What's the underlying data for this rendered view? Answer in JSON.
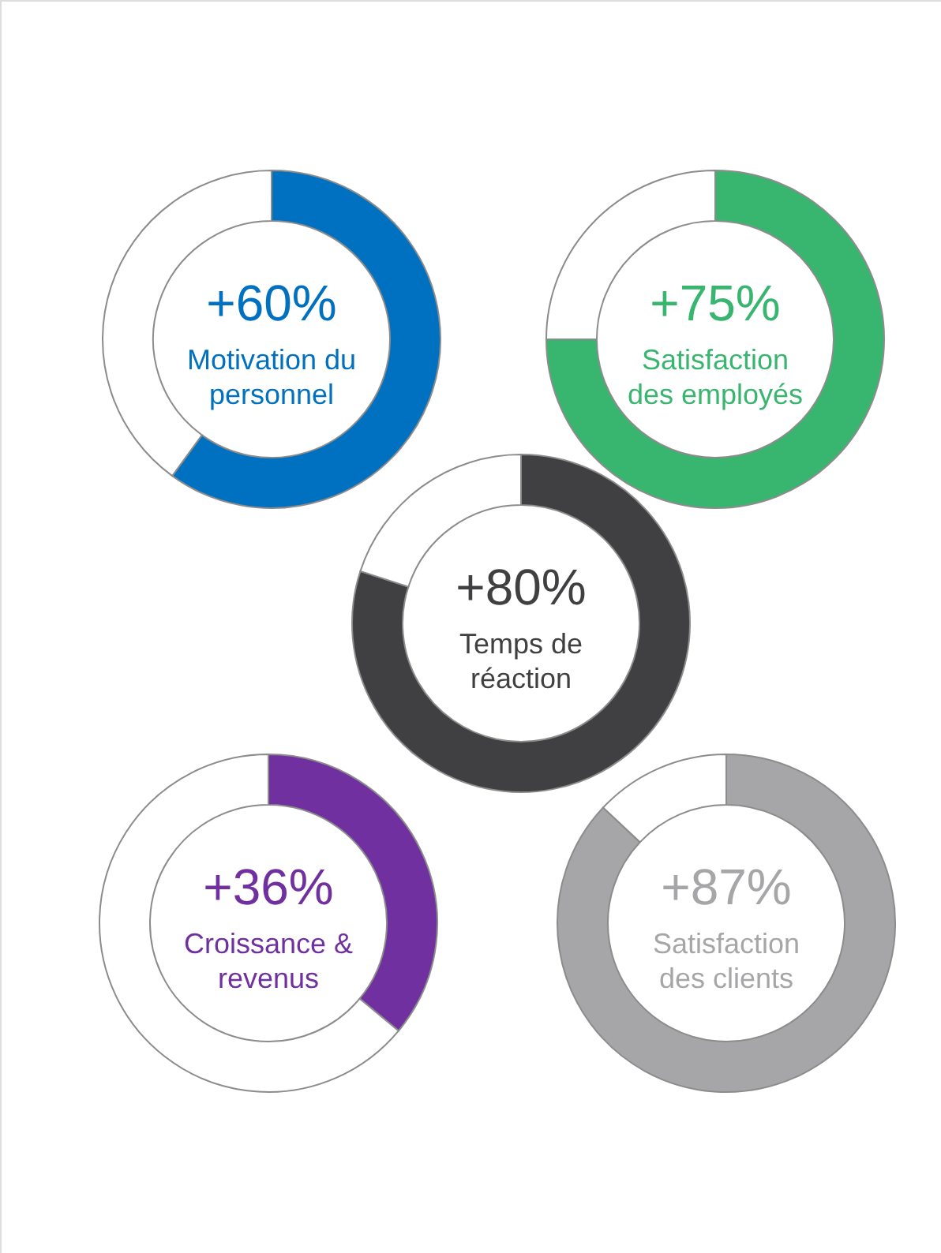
{
  "chart_data": [
    {
      "type": "donut",
      "title": "+60%",
      "subtitle": "Motivation du personnel",
      "categories": [
        null,
        null
      ],
      "values": [
        60,
        40
      ],
      "colors": [
        "#0070c0",
        "#ffffff"
      ]
    },
    {
      "type": "donut",
      "title": "+75%",
      "subtitle": "Satisfaction des employés",
      "categories": [
        null,
        null
      ],
      "values": [
        75,
        25
      ],
      "colors": [
        "#38b66f",
        "#ffffff"
      ]
    },
    {
      "type": "donut",
      "title": "+80%",
      "subtitle": "Temps de réaction",
      "categories": [
        null,
        null
      ],
      "values": [
        80,
        20
      ],
      "colors": [
        "#404042",
        "#ffffff"
      ]
    },
    {
      "type": "donut",
      "title": "+36%",
      "subtitle": "Croissance & revenus",
      "categories": [
        null,
        null
      ],
      "values": [
        36,
        64
      ],
      "colors": [
        "#7030a0",
        "#ffffff"
      ]
    },
    {
      "type": "donut",
      "title": "+87%",
      "subtitle": "Satisfaction des clients",
      "categories": [
        null,
        null
      ],
      "values": [
        87,
        13
      ],
      "colors": [
        "#a6a6a8",
        "#ffffff"
      ]
    }
  ]
}
